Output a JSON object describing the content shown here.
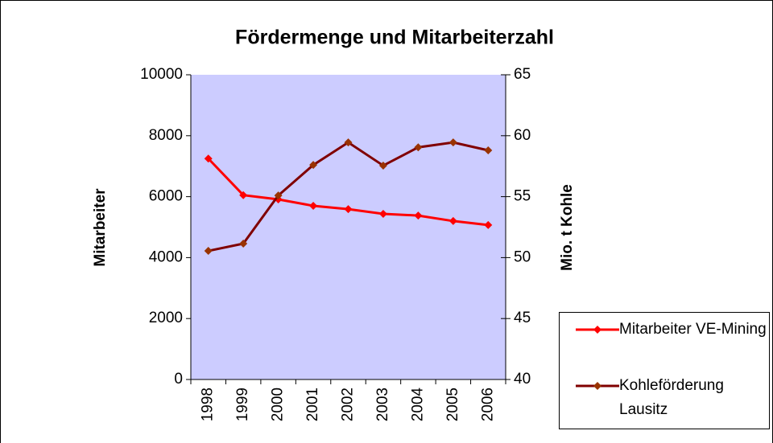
{
  "chart_data": {
    "type": "line",
    "title": "Fördermenge und Mitarbeiterzahl",
    "categories": [
      "1998",
      "1999",
      "2000",
      "2001",
      "2002",
      "2003",
      "2004",
      "2005",
      "2006"
    ],
    "series": [
      {
        "name": "Mitarbeiter VE-Mining",
        "color": "#ff0000",
        "values": [
          7250,
          6050,
          5910,
          5700,
          5590,
          5435,
          5380,
          5200,
          5070
        ]
      },
      {
        "name": "Kohleförderung Lausitz",
        "color": "#800000",
        "marker_color": "#993300",
        "axis": "y2",
        "values": [
          50.55,
          51.15,
          55.1,
          57.6,
          59.45,
          57.55,
          59.05,
          59.45,
          58.8
        ]
      }
    ],
    "y_label": "Mitarbeiter",
    "y2_label": "Mio. t Kohle",
    "ylim": [
      0,
      10000
    ],
    "yticks": [
      0,
      2000,
      4000,
      6000,
      8000,
      10000
    ],
    "y2lim": [
      40,
      65
    ],
    "y2ticks": [
      40,
      45,
      50,
      55,
      60,
      65
    ],
    "plot_background": "#ccccff"
  }
}
